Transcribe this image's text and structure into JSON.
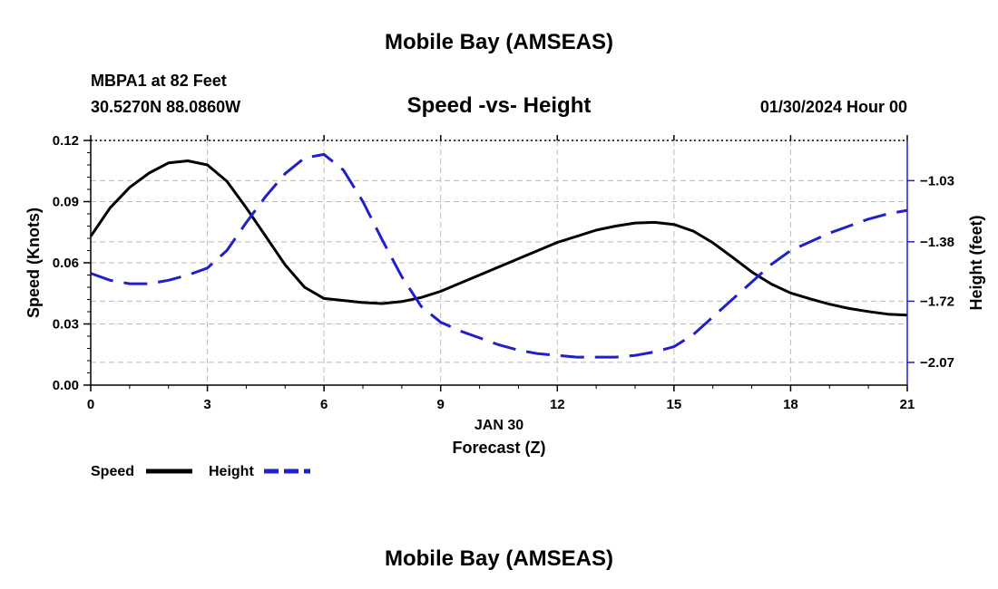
{
  "header": {
    "title": "Mobile Bay (AMSEAS)",
    "station_line": "MBPA1 at 82 Feet",
    "coords_line": "30.5270N  88.0860W",
    "subtitle": "Speed -vs- Height",
    "datetime": "01/30/2024 Hour 00"
  },
  "footer": {
    "title": "Mobile Bay (AMSEAS)"
  },
  "colors": {
    "speed": "#000000",
    "height": "#1f1fcc",
    "grid": "#bbbbbb"
  },
  "chart_data": {
    "type": "line",
    "title": "Speed -vs- Height",
    "xlabel": "Forecast (Z)",
    "xlabel_date": "JAN 30",
    "ylabel_left": "Speed (Knots)",
    "ylabel_right": "Height (feet)",
    "x_ticks": [
      0,
      3,
      6,
      9,
      12,
      15,
      18,
      21
    ],
    "x_tick_labels": [
      "0",
      "3",
      "6",
      "9",
      "12",
      "15",
      "18",
      "21"
    ],
    "xlim": [
      0,
      21
    ],
    "ylim_left": [
      0,
      0.12
    ],
    "y_ticks_left": [
      0,
      0.03,
      0.06,
      0.09,
      0.12
    ],
    "y_tick_labels_left": [
      "0.00",
      "0.03",
      "0.06",
      "0.09",
      "0.12"
    ],
    "ylim_right": [
      -2.2,
      -0.8
    ],
    "y_ticks_right": [
      -2.07,
      -1.72,
      -1.38,
      -1.03
    ],
    "y_tick_labels_right": [
      "−2.07",
      "−1.72",
      "−1.38",
      "−1.03"
    ],
    "grid": true,
    "legend_placement": "bottom-left",
    "series": [
      {
        "name": "Speed",
        "axis": "left",
        "style": "solid",
        "x": [
          0,
          0.5,
          1,
          1.5,
          2,
          2.5,
          3,
          3.5,
          4,
          4.5,
          5,
          5.5,
          6,
          6.5,
          7,
          7.5,
          8,
          8.5,
          9,
          9.5,
          10,
          10.5,
          11,
          11.5,
          12,
          12.5,
          13,
          13.5,
          14,
          14.5,
          15,
          15.5,
          16,
          16.5,
          17,
          17.5,
          18,
          18.5,
          19,
          19.5,
          20,
          20.5,
          21
        ],
        "values": [
          0.073,
          0.087,
          0.097,
          0.104,
          0.109,
          0.11,
          0.108,
          0.1,
          0.087,
          0.073,
          0.059,
          0.048,
          0.0425,
          0.0415,
          0.0405,
          0.04,
          0.041,
          0.043,
          0.046,
          0.05,
          0.054,
          0.058,
          0.062,
          0.066,
          0.07,
          0.073,
          0.076,
          0.078,
          0.0795,
          0.0798,
          0.0788,
          0.0755,
          0.0698,
          0.0628,
          0.0555,
          0.0496,
          0.0452,
          0.0423,
          0.0397,
          0.0376,
          0.0361,
          0.0348,
          0.0343
        ]
      },
      {
        "name": "Height",
        "axis": "right",
        "style": "dashed",
        "x": [
          0,
          0.5,
          1,
          1.5,
          2,
          2.5,
          3,
          3.5,
          4,
          4.5,
          5,
          5.5,
          6,
          6.5,
          7,
          7.5,
          8,
          8.5,
          9,
          9.5,
          10,
          10.5,
          11,
          11.5,
          12,
          12.5,
          13,
          13.5,
          14,
          14.5,
          15,
          15.5,
          16,
          16.5,
          17,
          17.5,
          18,
          18.5,
          19,
          19.5,
          20,
          20.5,
          21
        ],
        "values": [
          -1.56,
          -1.6,
          -1.62,
          -1.62,
          -1.6,
          -1.57,
          -1.53,
          -1.43,
          -1.27,
          -1.12,
          -0.99,
          -0.9,
          -0.88,
          -0.97,
          -1.15,
          -1.37,
          -1.58,
          -1.75,
          -1.84,
          -1.89,
          -1.93,
          -1.97,
          -2.0,
          -2.02,
          -2.03,
          -2.04,
          -2.04,
          -2.04,
          -2.03,
          -2.01,
          -1.98,
          -1.91,
          -1.81,
          -1.71,
          -1.61,
          -1.51,
          -1.43,
          -1.38,
          -1.33,
          -1.29,
          -1.25,
          -1.22,
          -1.2
        ]
      }
    ]
  }
}
